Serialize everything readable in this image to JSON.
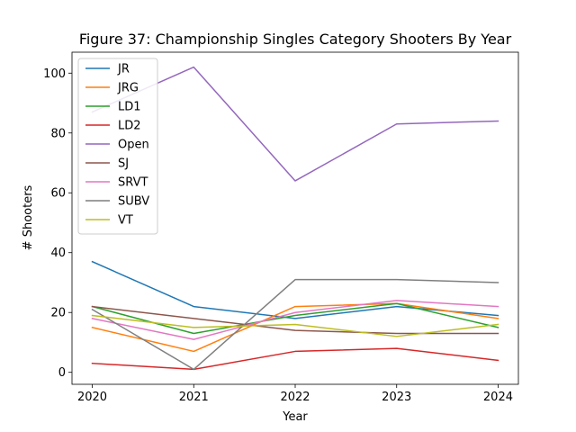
{
  "chart_data": {
    "type": "line",
    "title": "Figure 37: Championship Singles Category Shooters By Year",
    "xlabel": "Year",
    "ylabel": "# Shooters",
    "x": [
      2020,
      2021,
      2022,
      2023,
      2024
    ],
    "xticks": [
      "2020",
      "2021",
      "2022",
      "2023",
      "2024"
    ],
    "yticks": [
      0,
      20,
      40,
      60,
      80,
      100
    ],
    "xlim": [
      2019.8,
      2024.2
    ],
    "ylim": [
      -4,
      107
    ],
    "grid": false,
    "legend_position": "upper-left",
    "series": [
      {
        "name": "JR",
        "color": "#1f77b4",
        "values": [
          37,
          22,
          18,
          22,
          19
        ]
      },
      {
        "name": "JRG",
        "color": "#ff7f0e",
        "values": [
          15,
          7,
          22,
          23,
          18
        ]
      },
      {
        "name": "LD1",
        "color": "#2ca02c",
        "values": [
          22,
          13,
          19,
          23,
          15
        ]
      },
      {
        "name": "LD2",
        "color": "#d62728",
        "values": [
          3,
          1,
          7,
          8,
          4
        ]
      },
      {
        "name": "Open",
        "color": "#9467bd",
        "values": [
          87,
          102,
          64,
          83,
          84
        ]
      },
      {
        "name": "SJ",
        "color": "#8c564b",
        "values": [
          22,
          18,
          14,
          13,
          13
        ]
      },
      {
        "name": "SRVT",
        "color": "#e377c2",
        "values": [
          18,
          11,
          20,
          24,
          22
        ]
      },
      {
        "name": "SUBV",
        "color": "#7f7f7f",
        "values": [
          21,
          1,
          31,
          31,
          30
        ]
      },
      {
        "name": "VT",
        "color": "#bcbd22",
        "values": [
          19,
          15,
          16,
          12,
          16
        ]
      }
    ]
  }
}
